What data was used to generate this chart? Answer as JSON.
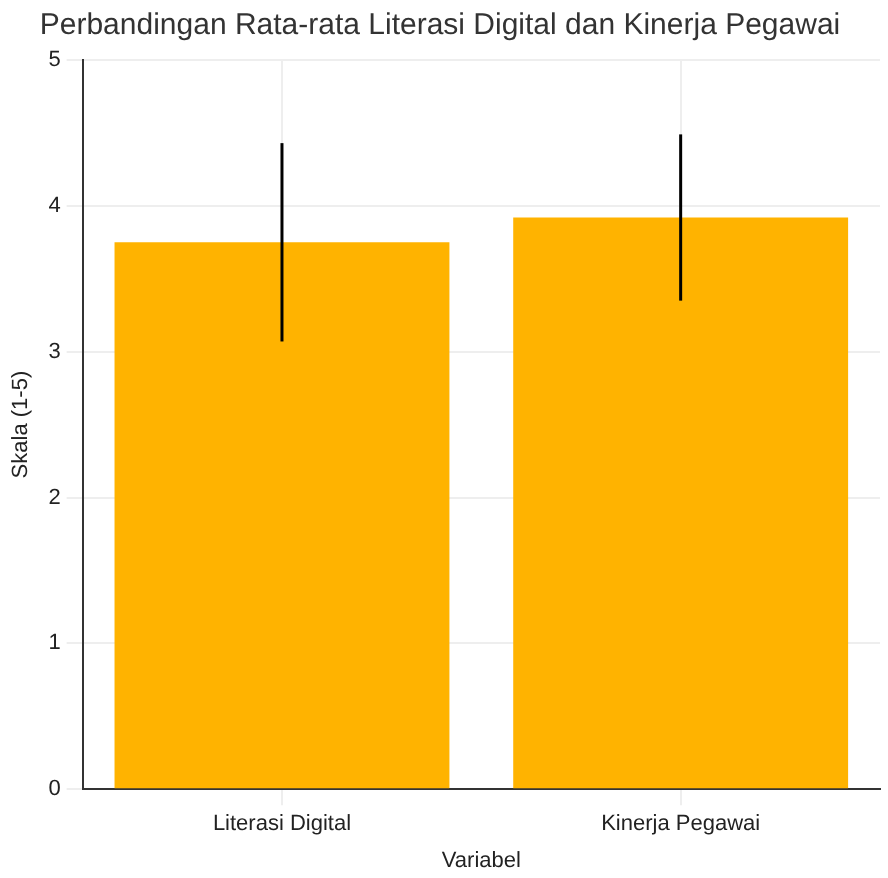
{
  "chart_data": {
    "type": "bar",
    "title": "Perbandingan Rata-rata Literasi Digital dan Kinerja Pegawai",
    "xlabel": "Variabel",
    "ylabel": "Skala (1-5)",
    "categories": [
      "Literasi Digital",
      "Kinerja Pegawai"
    ],
    "values": [
      3.75,
      3.92
    ],
    "errors": [
      0.68,
      0.57
    ],
    "color": "#ffb300",
    "ylim": [
      0,
      5
    ],
    "yticks": [
      0,
      1,
      2,
      3,
      4,
      5
    ],
    "grid": true
  }
}
